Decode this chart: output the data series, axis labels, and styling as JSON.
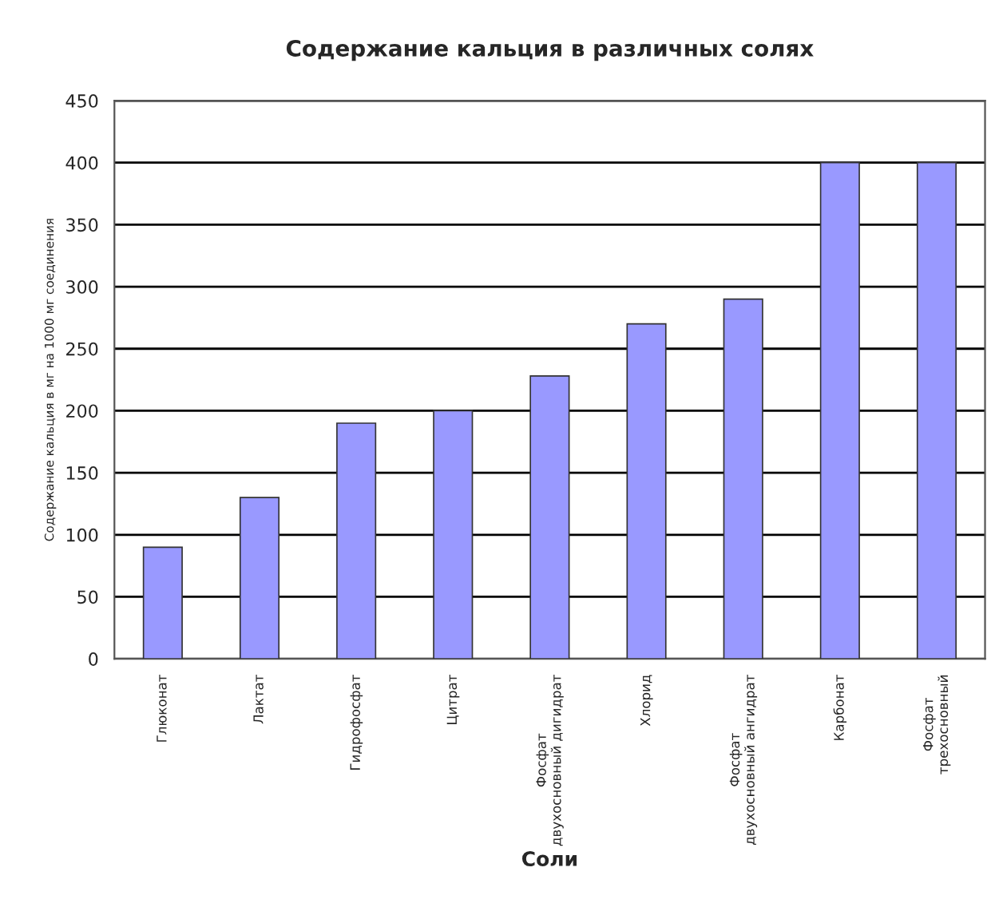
{
  "chart_data": {
    "type": "bar",
    "title": "Содержание кальция в различных солях",
    "xlabel": "Соли",
    "ylabel": "Содержание кальция в мг на 1000 мг соединения",
    "categories": [
      "Глюконат",
      "Лактат",
      "Гидрофосфат",
      "Цитрат",
      "Фосфат двухосновный дигидрат",
      "Хлорид",
      "Фосфат двухосновный ангидрат",
      "Карбонат",
      "Фосфат трехосновный"
    ],
    "values": [
      90,
      130,
      190,
      200,
      228,
      270,
      290,
      400,
      400
    ],
    "color": "#9999ff",
    "ylim": [
      0,
      450
    ],
    "yticks": [
      0,
      50,
      100,
      150,
      200,
      250,
      300,
      350,
      400,
      450
    ],
    "grid": "y",
    "legend": false
  }
}
